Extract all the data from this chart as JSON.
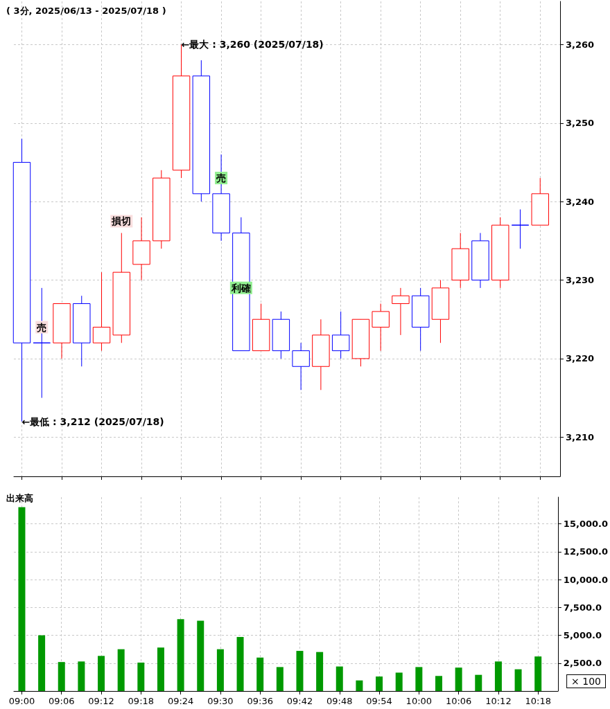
{
  "chart_data": [
    {
      "type": "candlestick",
      "title": "( 3分, 2025/06/13 - 2025/07/18 )",
      "x": [
        9,
        9.05,
        9.1,
        9.15,
        9.2,
        9.25,
        9.3,
        9.35,
        9.4,
        9.45,
        9.5,
        9.55,
        9.6,
        9.65,
        9.7,
        9.75,
        9.8,
        9.85,
        9.9,
        9.95,
        10,
        10.05,
        10.1,
        10.15,
        10.2,
        10.25,
        10.3
      ],
      "ohlc": [
        [
          3245,
          3248,
          3212,
          3222
        ],
        [
          3222,
          3229,
          3215,
          3222
        ],
        [
          3222,
          3227,
          3220,
          3227
        ],
        [
          3227,
          3228,
          3219,
          3222
        ],
        [
          3222,
          3231,
          3221,
          3224
        ],
        [
          3223,
          3236,
          3222,
          3231
        ],
        [
          3232,
          3238,
          3230,
          3235
        ],
        [
          3235,
          3244,
          3234,
          3243
        ],
        [
          3244,
          3260,
          3243,
          3256
        ],
        [
          3256,
          3258,
          3240,
          3241
        ],
        [
          3241,
          3246,
          3235,
          3236
        ],
        [
          3236,
          3238,
          3221,
          3221
        ],
        [
          3221,
          3227,
          3221,
          3225
        ],
        [
          3225,
          3226,
          3220,
          3221
        ],
        [
          3221,
          3222,
          3216,
          3219
        ],
        [
          3219,
          3225,
          3216,
          3223
        ],
        [
          3223,
          3226,
          3220,
          3221
        ],
        [
          3220,
          3225,
          3219,
          3225
        ],
        [
          3224,
          3227,
          3221,
          3226
        ],
        [
          3227,
          3229,
          3223,
          3228
        ],
        [
          3228,
          3229,
          3221,
          3224
        ],
        [
          3225,
          3230,
          3222,
          3229
        ],
        [
          3230,
          3236,
          3229,
          3234
        ],
        [
          3235,
          3236,
          3229,
          3230
        ],
        [
          3230,
          3238,
          3229,
          3237
        ],
        [
          3237,
          3239,
          3234,
          3237
        ],
        [
          3237,
          3243,
          3237,
          3241
        ]
      ],
      "colors": [
        "#0000ff",
        "#0000ff",
        "#ff0000",
        "#0000ff",
        "#ff0000",
        "#ff0000",
        "#ff0000",
        "#ff0000",
        "#ff0000",
        "#0000ff",
        "#0000ff",
        "#0000ff",
        "#ff0000",
        "#0000ff",
        "#0000ff",
        "#ff0000",
        "#0000ff",
        "#ff0000",
        "#ff0000",
        "#ff0000",
        "#0000ff",
        "#ff0000",
        "#ff0000",
        "#0000ff",
        "#ff0000",
        "#0000ff",
        "#ff0000"
      ],
      "xlim": [
        8.98,
        10.35
      ],
      "xticks": [
        {
          "value": 9,
          "label": null
        },
        {
          "value": 9.1,
          "label": null
        },
        {
          "value": 9.2,
          "label": null
        },
        {
          "value": 9.3,
          "label": null
        },
        {
          "value": 9.4,
          "label": null
        },
        {
          "value": 9.5,
          "label": null
        },
        {
          "value": 9.6,
          "label": null
        },
        {
          "value": 9.7,
          "label": null
        },
        {
          "value": 9.8,
          "label": null
        },
        {
          "value": 9.9,
          "label": null
        },
        {
          "value": 10,
          "label": null
        },
        {
          "value": 10.1,
          "label": null
        },
        {
          "value": 10.2,
          "label": null
        },
        {
          "value": 10.3,
          "label": null
        }
      ],
      "ylim": [
        3205,
        3265.5
      ],
      "yticks": [
        {
          "value": 3210,
          "label": "3,210"
        },
        {
          "value": 3220,
          "label": "3,220"
        },
        {
          "value": 3230,
          "label": "3,230"
        },
        {
          "value": 3240,
          "label": "3,240"
        },
        {
          "value": 3250,
          "label": "3,250"
        },
        {
          "value": 3260,
          "label": "3,260"
        }
      ],
      "tick_labels": "y",
      "grid": true,
      "annotations": [
        {
          "text": "←最大 : 3,260 (2025/07/18)",
          "x": 9.4,
          "y": 3260
        },
        {
          "text": "←最低 : 3,212 (2025/07/18)",
          "x": 9,
          "y": 3212
        },
        {
          "text": "売",
          "x": 9.05,
          "y": 3224
        },
        {
          "text": "損切",
          "x": 9.25,
          "y": 3237.5
        },
        {
          "text": "売",
          "x": 9.5,
          "y": 3243
        },
        {
          "text": "利確",
          "x": 9.55,
          "y": 3229
        }
      ]
    },
    {
      "type": "bar",
      "title": "出来高",
      "x": [
        9,
        9.05,
        9.1,
        9.15,
        9.2,
        9.25,
        9.3,
        9.35,
        9.4,
        9.45,
        9.5,
        9.55,
        9.6,
        9.65,
        9.7,
        9.75,
        9.8,
        9.85,
        9.9,
        9.95,
        10,
        10.05,
        10.1,
        10.15,
        10.2,
        10.25,
        10.3
      ],
      "values": [
        16500,
        5000,
        2600,
        2650,
        3150,
        3750,
        2550,
        3900,
        6450,
        6300,
        3750,
        4850,
        3000,
        2150,
        3600,
        3500,
        2200,
        950,
        1300,
        1650,
        2150,
        1350,
        2100,
        1450,
        2650,
        1950,
        3100
      ],
      "color": "#009900",
      "xlim": [
        8.98,
        10.35
      ],
      "xticks": [
        {
          "value": 9,
          "label": "09:00"
        },
        {
          "value": 9.1,
          "label": "09:06"
        },
        {
          "value": 9.2,
          "label": "09:12"
        },
        {
          "value": 9.3,
          "label": "09:18"
        },
        {
          "value": 9.4,
          "label": "09:24"
        },
        {
          "value": 9.5,
          "label": "09:30"
        },
        {
          "value": 9.6,
          "label": "09:36"
        },
        {
          "value": 9.7,
          "label": "09:42"
        },
        {
          "value": 9.8,
          "label": "09:48"
        },
        {
          "value": 9.9,
          "label": "09:54"
        },
        {
          "value": 10,
          "label": "10:00"
        },
        {
          "value": 10.1,
          "label": "10:06"
        },
        {
          "value": 10.2,
          "label": "10:12"
        },
        {
          "value": 10.3,
          "label": "10:18"
        }
      ],
      "ylim": [
        0,
        17400
      ],
      "yticks": [
        {
          "value": 2500,
          "label": "2,500.0"
        },
        {
          "value": 5000,
          "label": "5,000.0"
        },
        {
          "value": 7500,
          "label": "7,500.0"
        },
        {
          "value": 10000,
          "label": "10,000.0"
        },
        {
          "value": 12500,
          "label": "12,500.0"
        },
        {
          "value": 15000,
          "label": "15,000.0"
        }
      ],
      "grid": true,
      "annotations": [
        "× 100"
      ]
    }
  ]
}
